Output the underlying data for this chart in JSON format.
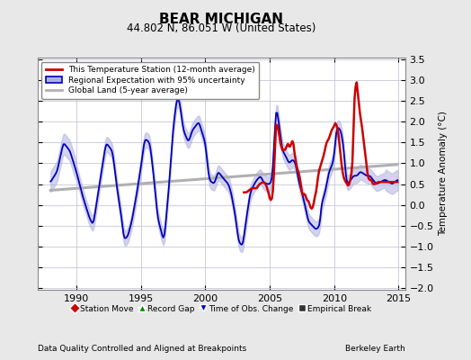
{
  "title": "BEAR MICHIGAN",
  "subtitle": "44.802 N, 86.051 W (United States)",
  "xlabel_left": "Data Quality Controlled and Aligned at Breakpoints",
  "xlabel_right": "Berkeley Earth",
  "ylabel": "Temperature Anomaly (°C)",
  "xlim": [
    1987.0,
    2015.5
  ],
  "ylim": [
    -2.05,
    3.55
  ],
  "yticks": [
    -2,
    -1.5,
    -1,
    -0.5,
    0,
    0.5,
    1,
    1.5,
    2,
    2.5,
    3,
    3.5
  ],
  "xticks": [
    1990,
    1995,
    2000,
    2005,
    2010,
    2015
  ],
  "background_color": "#e8e8e8",
  "plot_bg_color": "#ffffff",
  "grid_color": "#c8c8d8",
  "red_color": "#cc0000",
  "blue_color": "#0000bb",
  "blue_fill_color": "#b0b0e0",
  "gray_color": "#b0b0b0",
  "legend_items": [
    {
      "label": "This Temperature Station (12-month average)",
      "color": "#cc0000",
      "lw": 2
    },
    {
      "label": "Regional Expectation with 95% uncertainty",
      "color": "#0000bb",
      "lw": 1.5
    },
    {
      "label": "Global Land (5-year average)",
      "color": "#b0b0b0",
      "lw": 2
    }
  ],
  "bottom_legend": [
    {
      "label": "Station Move",
      "color": "#cc0000",
      "marker": "D"
    },
    {
      "label": "Record Gap",
      "color": "#008800",
      "marker": "^"
    },
    {
      "label": "Time of Obs. Change",
      "color": "#0000bb",
      "marker": "v"
    },
    {
      "label": "Empirical Break",
      "color": "#333333",
      "marker": "s"
    }
  ]
}
